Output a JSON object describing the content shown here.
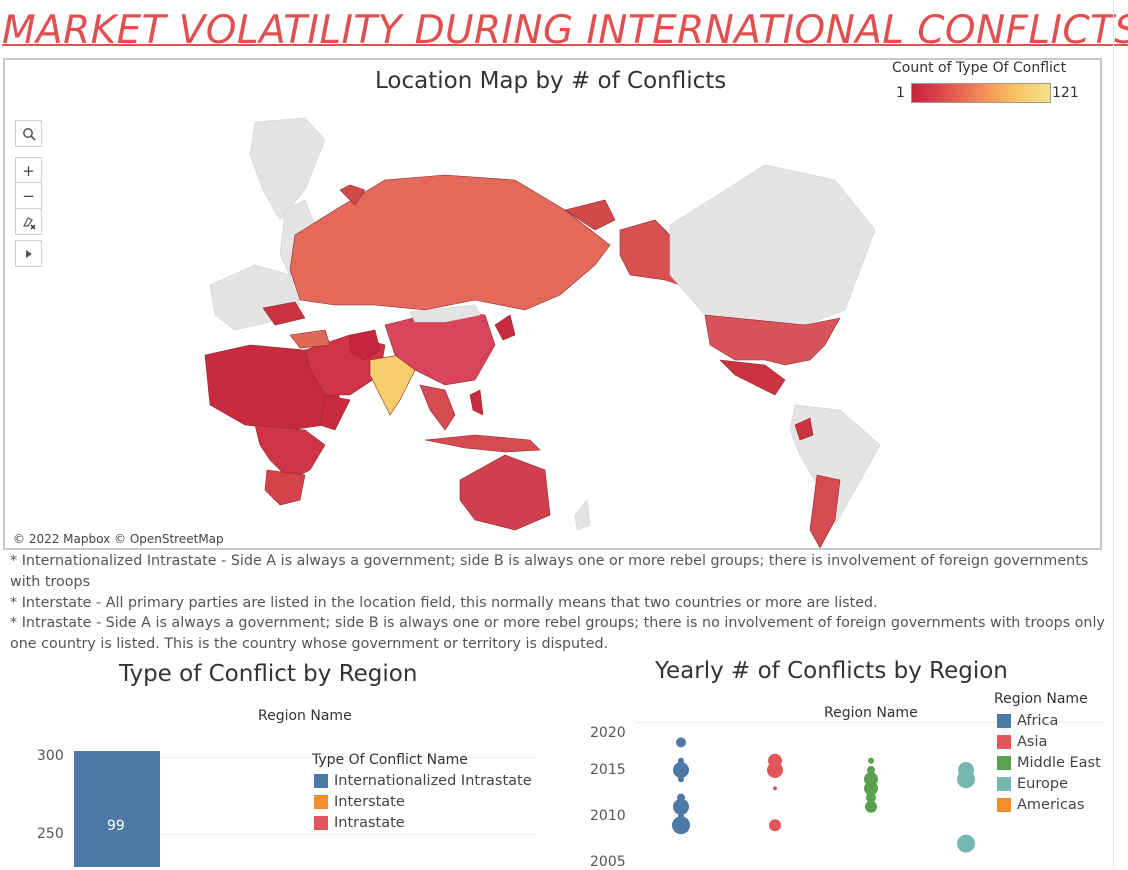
{
  "page_title": "MARKET VOLATILITY DURING INTERNATIONAL CONFLICTS",
  "map": {
    "title": "Location Map by # of Conflicts",
    "legend_title": "Count of Type Of Conflict",
    "legend_min": "1",
    "legend_max": "121",
    "attribution": "© 2022 Mapbox © OpenStreetMap",
    "tools": [
      "search-icon",
      "zoom-in-icon",
      "zoom-out-icon",
      "pin-clear-icon",
      "play-icon"
    ],
    "colors": {
      "low": "#c8233f",
      "mid": "#e0504e",
      "high": "#f9c463",
      "unmatched": "#e4e4e4"
    }
  },
  "notes": [
    "* Internationalized Intrastate - Side A is always a government; side B is always one or more rebel groups; there is involvement of foreign governments with troops",
    "* Interstate - All primary parties are listed in the location field, this normally means that two countries or more are listed.",
    "* Intrastate - Side A is always a government; side B is always one or more rebel groups; there is no involvement of foreign governments with troops only one country is listed.  This is the country whose government or territory is disputed."
  ],
  "chart_data": [
    {
      "type": "bar",
      "title": "Type of Conflict by Region",
      "column_header": "Region Name",
      "legend_title": "Type Of Conflict Name",
      "legend": [
        {
          "name": "Internationalized Intrastate",
          "color": "#4e79a7"
        },
        {
          "name": "Interstate",
          "color": "#f28e2b"
        },
        {
          "name": "Intrastate",
          "color": "#e15759"
        }
      ],
      "y_ticks": [
        "300",
        "250"
      ],
      "series": [
        {
          "name": "Internationalized Intrastate",
          "values": [
            304
          ],
          "label": "99"
        }
      ],
      "ylim": [
        225,
        310
      ]
    },
    {
      "type": "scatter",
      "title": "Yearly # of Conflicts by Region",
      "column_header": "Region Name",
      "legend_title": "Region Name",
      "legend": [
        {
          "name": "Africa",
          "color": "#4e79a7"
        },
        {
          "name": "Asia",
          "color": "#e15759"
        },
        {
          "name": "Middle East",
          "color": "#59a14f"
        },
        {
          "name": "Europe",
          "color": "#76b7b2"
        },
        {
          "name": "Americas",
          "color": "#f28e2b"
        }
      ],
      "y_ticks": [
        "2020",
        "2015",
        "2010",
        "2005"
      ],
      "ylim": [
        2005,
        2021
      ],
      "series": [
        {
          "name": "Africa",
          "color": "#4e79a7",
          "points": [
            {
              "y": 2018,
              "size": 5
            },
            {
              "y": 2016,
              "size": 3
            },
            {
              "y": 2015,
              "size": 8
            },
            {
              "y": 2014,
              "size": 3
            },
            {
              "y": 2012,
              "size": 4
            },
            {
              "y": 2011,
              "size": 8
            },
            {
              "y": 2010,
              "size": 3
            },
            {
              "y": 2009,
              "size": 9
            },
            {
              "y": 2008.5,
              "size": 3
            }
          ]
        },
        {
          "name": "Asia",
          "color": "#e15759",
          "points": [
            {
              "y": 2016,
              "size": 7
            },
            {
              "y": 2015,
              "size": 8
            },
            {
              "y": 2013,
              "size": 2
            },
            {
              "y": 2009,
              "size": 6
            }
          ]
        },
        {
          "name": "Middle East",
          "color": "#59a14f",
          "points": [
            {
              "y": 2016,
              "size": 3
            },
            {
              "y": 2015,
              "size": 4
            },
            {
              "y": 2014,
              "size": 7
            },
            {
              "y": 2013,
              "size": 7
            },
            {
              "y": 2012,
              "size": 5
            },
            {
              "y": 2011,
              "size": 6
            }
          ]
        },
        {
          "name": "Europe",
          "color": "#76b7b2",
          "points": [
            {
              "y": 2015,
              "size": 8
            },
            {
              "y": 2014,
              "size": 9
            },
            {
              "y": 2007,
              "size": 9
            }
          ]
        }
      ]
    }
  ]
}
